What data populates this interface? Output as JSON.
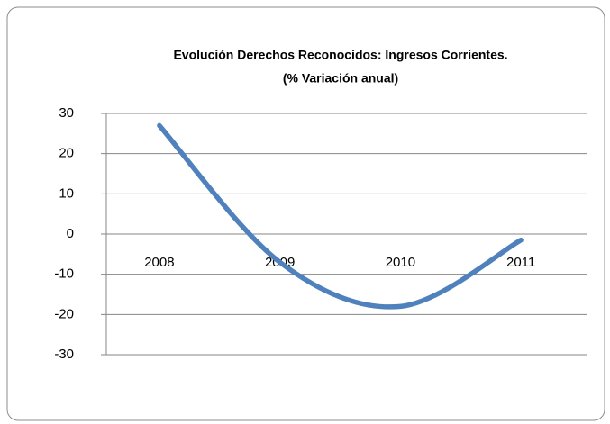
{
  "chart_data": {
    "type": "line",
    "title": "Evolución Derechos Reconocidos: Ingresos Corrientes.",
    "subtitle": "(% Variación anual)",
    "categories": [
      "2008",
      "2009",
      "2010",
      "2011"
    ],
    "values": [
      27,
      -7,
      -18,
      -1.5
    ],
    "color": "#4f81bd",
    "smooth": true,
    "ylim": [
      -30,
      30
    ],
    "yticks": [
      -30,
      -20,
      -10,
      0,
      10,
      20,
      30
    ],
    "grid": true
  }
}
